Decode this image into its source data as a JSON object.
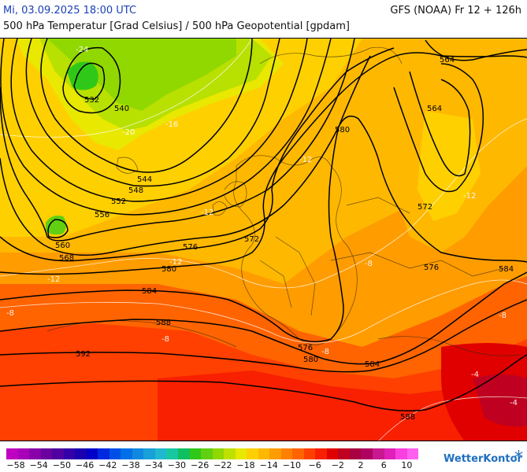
{
  "header": {
    "valid_time": "Mi, 03.09.2025 18:00 UTC",
    "model_run": "GFS (NOAA) Fr 12 + 126h",
    "parameters": "500 hPa Temperatur [Grad Celsius] / 500 hPa Geopotential [gpdam]"
  },
  "map": {
    "geopotential_labels": [
      "532",
      "540",
      "544",
      "548",
      "552",
      "556",
      "560",
      "564",
      "568",
      "572",
      "576",
      "580",
      "584",
      "588",
      "592",
      "588",
      "576",
      "580",
      "584",
      "564",
      "572",
      "580",
      "576",
      "584"
    ],
    "temperature_labels": [
      "-24",
      "-20",
      "-16",
      "-12",
      "-12",
      "-12",
      "-12",
      "-12",
      "-8",
      "-8",
      "-8",
      "-8",
      "-8",
      "-4",
      "-4"
    ]
  },
  "colorbar": {
    "colors": [
      "#c000c0",
      "#a800b8",
      "#8800a8",
      "#6a00a0",
      "#5000a0",
      "#3400a8",
      "#1a00b0",
      "#0000c8",
      "#0028e0",
      "#0050e8",
      "#0070e8",
      "#1088e0",
      "#18a0d8",
      "#20b8d0",
      "#18c8a0",
      "#10c060",
      "#30c818",
      "#60d010",
      "#90d800",
      "#c0e000",
      "#e8e800",
      "#ffd000",
      "#ffb800",
      "#ff9c00",
      "#ff8000",
      "#ff6400",
      "#ff4000",
      "#f82000",
      "#e00000",
      "#c00020",
      "#a80040",
      "#b00060",
      "#c81890",
      "#e020b8",
      "#f840e0",
      "#ff60f0"
    ],
    "tick_labels": [
      "-58",
      "-54",
      "-50",
      "-46",
      "-42",
      "-38",
      "-34",
      "-30",
      "-26",
      "-22",
      "-18",
      "-14",
      "-10",
      "-6",
      "-2",
      "2",
      "6",
      "10"
    ]
  },
  "brand": {
    "name": "WetterKontor",
    "icon": "snowflake-icon"
  }
}
